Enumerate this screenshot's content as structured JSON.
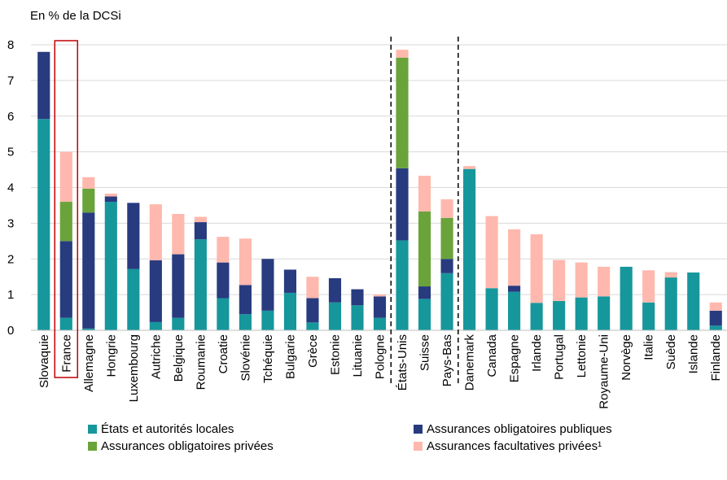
{
  "chart_data": {
    "type": "bar",
    "stacked": true,
    "ylabel": "En % de la DCSi",
    "ylim": [
      0,
      8
    ],
    "yticks": [
      "0",
      "1",
      "2",
      "3",
      "4",
      "5",
      "6",
      "7",
      "8"
    ],
    "grid": true,
    "legend_position": "bottom",
    "highlighted_category": "France",
    "group_separators_after": [
      "Pologne",
      "Pays-Bas"
    ],
    "categories": [
      "Slovaquie",
      "France",
      "Allemagne",
      "Hongrie",
      "Luxembourg",
      "Autriche",
      "Belgique",
      "Roumanie",
      "Croatie",
      "Slovénie",
      "Tchéquie",
      "Bulgarie",
      "Grèce",
      "Estonie",
      "Lituanie",
      "Pologne",
      "États-Unis",
      "Suisse",
      "Pays-Bas",
      "Danemark",
      "Canada",
      "Espagne",
      "Irlande",
      "Portugal",
      "Lettonie",
      "Royaume-Uni",
      "Norvège",
      "Italie",
      "Suède",
      "Islande",
      "Finlande"
    ],
    "series": [
      {
        "name": "États et autorités locales",
        "color": "#16979c",
        "values": [
          5.92,
          0.35,
          0.05,
          3.6,
          1.72,
          0.23,
          0.35,
          2.55,
          0.9,
          0.45,
          0.55,
          1.05,
          0.22,
          0.78,
          0.7,
          0.35,
          2.52,
          0.88,
          1.6,
          4.52,
          1.18,
          1.08,
          0.77,
          0.82,
          0.92,
          0.95,
          1.78,
          0.78,
          1.48,
          1.62,
          0.13
        ]
      },
      {
        "name": "Assurances obligatoires publiques",
        "color": "#283b7f",
        "values": [
          1.88,
          2.15,
          3.25,
          0.15,
          1.85,
          1.73,
          1.78,
          0.48,
          1.0,
          0.82,
          1.45,
          0.65,
          0.68,
          0.68,
          0.45,
          0.6,
          2.02,
          0.35,
          0.4,
          0,
          0,
          0.17,
          0,
          0,
          0,
          0,
          0,
          0,
          0,
          0,
          0.42
        ]
      },
      {
        "name": "Assurances obligatoires privées",
        "color": "#6aa33a",
        "values": [
          0,
          1.1,
          0.67,
          0,
          0,
          0,
          0,
          0,
          0,
          0,
          0,
          0,
          0,
          0,
          0,
          0,
          3.1,
          2.1,
          1.15,
          0,
          0,
          0,
          0,
          0,
          0,
          0,
          0,
          0,
          0,
          0,
          0
        ]
      },
      {
        "name": "Assurances facultatives privées¹",
        "color": "#ffb8ad",
        "values": [
          0,
          1.4,
          0.32,
          0.08,
          0,
          1.57,
          1.13,
          0.15,
          0.72,
          1.3,
          0,
          0,
          0.6,
          0,
          0,
          0.05,
          0.22,
          1.0,
          0.52,
          0.08,
          2.02,
          1.58,
          1.92,
          1.15,
          0.98,
          0.83,
          0,
          0.9,
          0.15,
          0,
          0.23
        ]
      }
    ]
  }
}
